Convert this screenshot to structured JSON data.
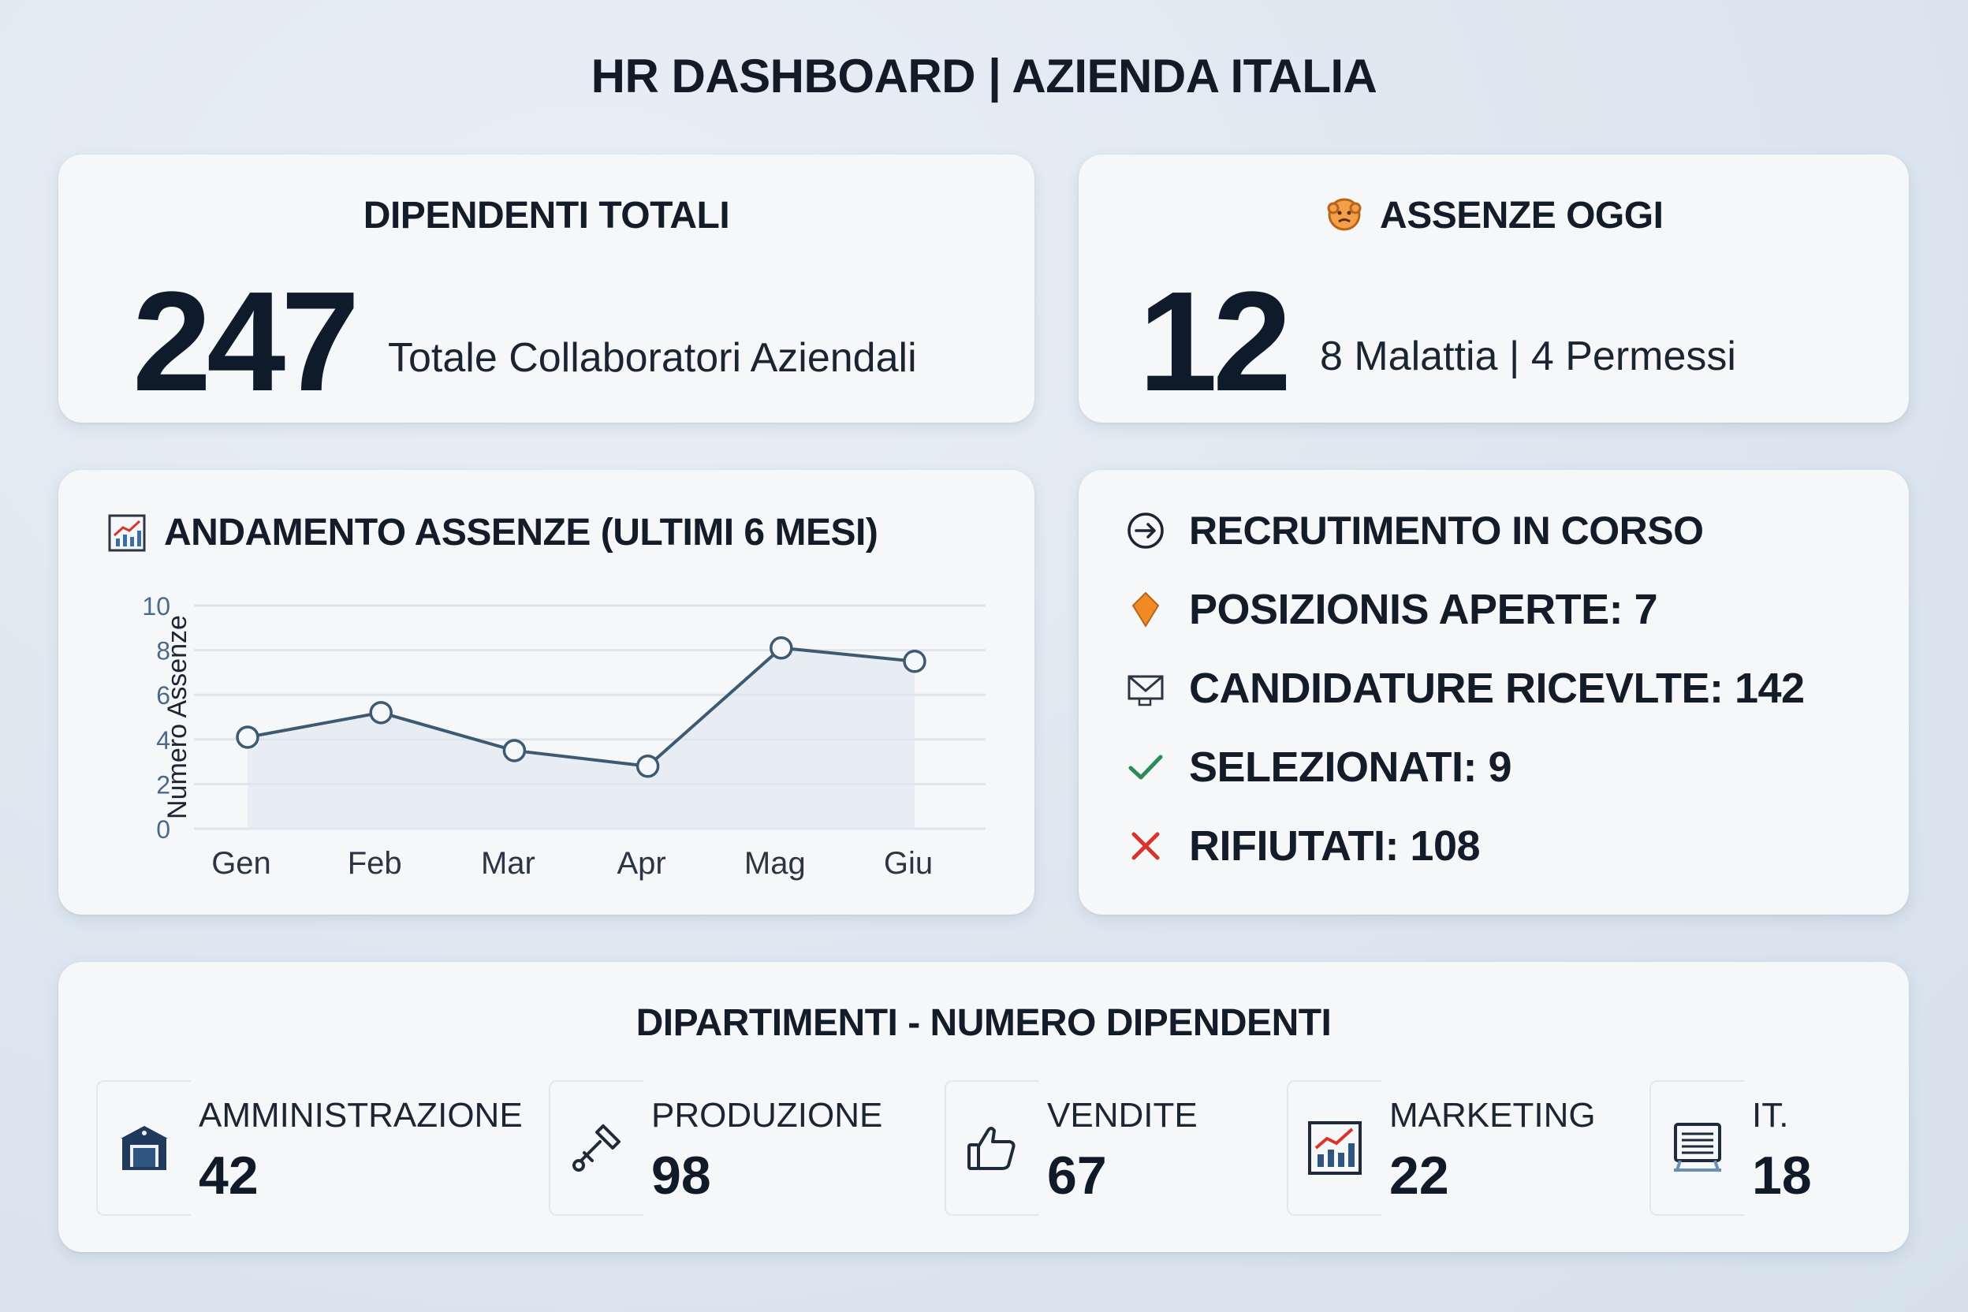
{
  "header": {
    "title": "HR DASHBOARD | AZIENDA ITALIA"
  },
  "total_employees": {
    "heading": "DIPENDENTI TOTALI",
    "value": "247",
    "caption": "Totale Collaboratori Aziendali"
  },
  "absences_today": {
    "icon": "face-icon",
    "heading": "ASSENZE OGGI",
    "value": "12",
    "caption": "8 Malattia | 4 Permessi"
  },
  "trend": {
    "icon": "chart-icon",
    "heading": "ANDAMENTO ASSENZE (ULTIMI 6 MESI)"
  },
  "chart_data": {
    "type": "line",
    "categories": [
      "Gen",
      "Feb",
      "Mar",
      "Apr",
      "Mag",
      "Giu"
    ],
    "series": [
      {
        "values": [
          4.1,
          5.2,
          3.5,
          2.8,
          8.1,
          7.5
        ]
      }
    ],
    "ylabel": "Numero Assenze",
    "xlabel": "",
    "ylim": [
      0,
      10
    ],
    "yticks": [
      "0",
      "2",
      "4",
      "6",
      "8",
      "10"
    ],
    "grid": true,
    "line_color": "#3d5a73"
  },
  "recruitment": {
    "heading": "RECRUTIMENTO IN CORSO",
    "heading_icon": "arrow-circle-icon",
    "items": [
      {
        "icon": "diamond-pin-icon",
        "label": "POSIZIONIS APERTE: 7",
        "color": "#f08a24"
      },
      {
        "icon": "envelope-icon",
        "label": "CANDIDATURE RICEVLTE: 142",
        "color": "#2b3544"
      },
      {
        "icon": "check-icon",
        "label": "SELEZIONATI: 9",
        "color": "#2e8b57"
      },
      {
        "icon": "cross-icon",
        "label": "RIFIUTATI: 108",
        "color": "#d9342b"
      }
    ]
  },
  "departments": {
    "heading": "DIPARTIMENTI - NUMERO DIPENDENTI",
    "items": [
      {
        "icon": "building-icon",
        "name": "AMMINISTRAZIONE",
        "count": "42"
      },
      {
        "icon": "tool-icon",
        "name": "PRODUZIONE",
        "count": "98"
      },
      {
        "icon": "thumbs-up-icon",
        "name": "VENDITE",
        "count": "67"
      },
      {
        "icon": "growth-chart-icon",
        "name": "MARKETING",
        "count": "22"
      },
      {
        "icon": "server-icon",
        "name": "IT.",
        "count": "18"
      }
    ]
  }
}
